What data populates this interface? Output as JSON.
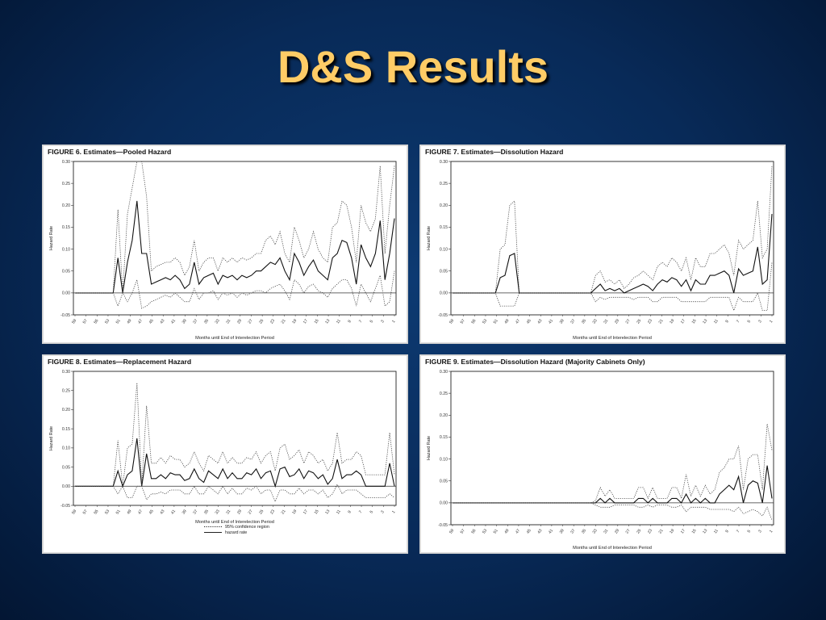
{
  "slide": {
    "title": "D&S Results"
  },
  "chart_data": [
    {
      "type": "line",
      "title": "FIGURE 6.   Estimates—Pooled Hazard",
      "xlabel": "Months until End of Interelection Period",
      "ylabel": "Hazard Rate",
      "ylim": [
        -0.05,
        0.3
      ],
      "yticks": [
        "0.30",
        "0.25",
        "0.20",
        "0.15",
        "0.10",
        "0.05",
        "0.00",
        "-0.05"
      ],
      "xticks": [
        "59",
        "57",
        "55",
        "53",
        "51",
        "49",
        "47",
        "45",
        "43",
        "41",
        "39",
        "37",
        "35",
        "33",
        "31",
        "29",
        "27",
        "25",
        "23",
        "21",
        "19",
        "17",
        "15",
        "13",
        "11",
        "9",
        "7",
        "5",
        "3",
        "1"
      ],
      "legend": [],
      "series": [
        {
          "name": "hazard rate",
          "style": "solid",
          "values": [
            0,
            0,
            0,
            0,
            0,
            0,
            0,
            0,
            0,
            0.08,
            0,
            0.07,
            0.12,
            0.21,
            0.09,
            0.09,
            0.02,
            0.025,
            0.03,
            0.035,
            0.03,
            0.04,
            0.03,
            0.01,
            0.02,
            0.07,
            0.02,
            0.035,
            0.04,
            0.045,
            0.02,
            0.04,
            0.035,
            0.04,
            0.03,
            0.04,
            0.035,
            0.04,
            0.05,
            0.05,
            0.06,
            0.07,
            0.065,
            0.08,
            0.05,
            0.03,
            0.09,
            0.07,
            0.04,
            0.06,
            0.075,
            0.05,
            0.04,
            0.03,
            0.08,
            0.09,
            0.12,
            0.115,
            0.08,
            0.02,
            0.11,
            0.08,
            0.06,
            0.09,
            0.165,
            0.03,
            0.09,
            0.17
          ]
        },
        {
          "name": "95% upper",
          "style": "dotted",
          "values": [
            0,
            0,
            0,
            0,
            0,
            0,
            0,
            0,
            0,
            0.19,
            0,
            0.18,
            0.24,
            0.3,
            0.3,
            0.22,
            0.05,
            0.06,
            0.065,
            0.07,
            0.07,
            0.08,
            0.07,
            0.04,
            0.06,
            0.12,
            0.05,
            0.07,
            0.08,
            0.08,
            0.05,
            0.08,
            0.07,
            0.08,
            0.07,
            0.08,
            0.075,
            0.08,
            0.09,
            0.09,
            0.12,
            0.13,
            0.11,
            0.14,
            0.09,
            0.07,
            0.15,
            0.12,
            0.08,
            0.1,
            0.14,
            0.1,
            0.08,
            0.07,
            0.15,
            0.16,
            0.21,
            0.2,
            0.15,
            0.07,
            0.2,
            0.16,
            0.14,
            0.17,
            0.29,
            0.09,
            0.2,
            0.29
          ]
        },
        {
          "name": "95% lower",
          "style": "dotted",
          "values": [
            0,
            0,
            0,
            0,
            0,
            0,
            0,
            0,
            0,
            -0.03,
            0,
            -0.02,
            0,
            0.03,
            -0.035,
            -0.03,
            -0.02,
            -0.015,
            -0.01,
            -0.005,
            -0.01,
            0,
            -0.01,
            -0.02,
            -0.02,
            0.01,
            -0.015,
            0,
            0,
            0.005,
            -0.015,
            0,
            -0.005,
            0,
            -0.01,
            0,
            -0.005,
            0,
            0.005,
            0.005,
            0,
            0.01,
            0.015,
            0.02,
            0.005,
            -0.015,
            0.03,
            0.02,
            0,
            0.015,
            0.02,
            0.005,
            0,
            -0.01,
            0.01,
            0.02,
            0.03,
            0.03,
            0.01,
            -0.03,
            0.02,
            0,
            -0.02,
            0.01,
            0.04,
            -0.03,
            -0.02,
            0.05
          ]
        }
      ]
    },
    {
      "type": "line",
      "title": "FIGURE 7.   Estimates—Dissolution Hazard",
      "xlabel": "Months until End of Interelection Period",
      "ylabel": "Hazard Rate",
      "ylim": [
        -0.05,
        0.3
      ],
      "yticks": [
        "0.30",
        "0.25",
        "0.20",
        "0.15",
        "0.10",
        "0.05",
        "0.00",
        "-0.05"
      ],
      "xticks": [
        "59",
        "57",
        "55",
        "53",
        "51",
        "49",
        "47",
        "45",
        "43",
        "41",
        "39",
        "37",
        "35",
        "33",
        "31",
        "29",
        "27",
        "25",
        "23",
        "21",
        "19",
        "17",
        "15",
        "13",
        "11",
        "9",
        "7",
        "5",
        "3",
        "1"
      ],
      "legend": [],
      "series": [
        {
          "name": "hazard rate",
          "style": "solid",
          "values": [
            0,
            0,
            0,
            0,
            0,
            0,
            0,
            0,
            0,
            0,
            0.035,
            0.04,
            0.085,
            0.09,
            0,
            0,
            0,
            0,
            0,
            0,
            0,
            0,
            0,
            0,
            0,
            0,
            0,
            0,
            0,
            0,
            0.01,
            0.02,
            0.005,
            0.01,
            0.005,
            0.01,
            0,
            0.005,
            0.01,
            0.015,
            0.02,
            0.015,
            0.005,
            0.02,
            0.03,
            0.025,
            0.035,
            0.03,
            0.015,
            0.03,
            0.005,
            0.03,
            0.02,
            0.02,
            0.04,
            0.04,
            0.045,
            0.05,
            0.04,
            0,
            0.055,
            0.04,
            0.045,
            0.05,
            0.105,
            0.02,
            0.03,
            0.18
          ]
        },
        {
          "name": "95% upper",
          "style": "dotted",
          "values": [
            0,
            0,
            0,
            0,
            0,
            0,
            0,
            0,
            0,
            0,
            0.1,
            0.11,
            0.2,
            0.21,
            0,
            0,
            0,
            0,
            0,
            0,
            0,
            0,
            0,
            0,
            0,
            0,
            0,
            0,
            0,
            0,
            0.04,
            0.05,
            0.025,
            0.03,
            0.02,
            0.03,
            0.01,
            0.02,
            0.035,
            0.04,
            0.05,
            0.04,
            0.03,
            0.06,
            0.07,
            0.06,
            0.08,
            0.07,
            0.05,
            0.08,
            0.03,
            0.08,
            0.06,
            0.06,
            0.09,
            0.09,
            0.1,
            0.11,
            0.09,
            0.04,
            0.12,
            0.1,
            0.11,
            0.12,
            0.21,
            0.08,
            0.1,
            0.29
          ]
        },
        {
          "name": "95% lower",
          "style": "dotted",
          "values": [
            0,
            0,
            0,
            0,
            0,
            0,
            0,
            0,
            0,
            0,
            -0.03,
            -0.03,
            -0.03,
            -0.03,
            0,
            0,
            0,
            0,
            0,
            0,
            0,
            0,
            0,
            0,
            0,
            0,
            0,
            0,
            0,
            0,
            -0.02,
            -0.01,
            -0.015,
            -0.01,
            -0.01,
            -0.01,
            -0.01,
            -0.01,
            -0.015,
            -0.01,
            -0.01,
            -0.01,
            -0.02,
            -0.02,
            -0.01,
            -0.01,
            -0.01,
            -0.01,
            -0.02,
            -0.02,
            -0.02,
            -0.02,
            -0.02,
            -0.02,
            -0.01,
            -0.01,
            -0.01,
            -0.01,
            -0.01,
            -0.04,
            -0.01,
            -0.02,
            -0.02,
            -0.02,
            0,
            -0.04,
            -0.04,
            0.07
          ]
        }
      ]
    },
    {
      "type": "line",
      "title": "FIGURE 8.   Estimates—Replacement Hazard",
      "xlabel": "Months until End of Interelection Period",
      "ylabel": "Hazard Rate",
      "ylim": [
        -0.05,
        0.3
      ],
      "yticks": [
        "0.30",
        "0.25",
        "0.20",
        "0.15",
        "0.10",
        "0.05",
        "0.00",
        "-0.05"
      ],
      "xticks": [
        "59",
        "57",
        "55",
        "53",
        "51",
        "49",
        "47",
        "45",
        "43",
        "41",
        "39",
        "37",
        "35",
        "33",
        "31",
        "29",
        "27",
        "25",
        "23",
        "21",
        "19",
        "17",
        "15",
        "13",
        "11",
        "9",
        "7",
        "5",
        "3",
        "1"
      ],
      "legend": [
        "95% confidence region",
        "hazard rate"
      ],
      "series": [
        {
          "name": "hazard rate",
          "style": "solid",
          "values": [
            0,
            0,
            0,
            0,
            0,
            0,
            0,
            0,
            0,
            0.04,
            0,
            0.03,
            0.04,
            0.125,
            0,
            0.085,
            0.02,
            0.02,
            0.03,
            0.02,
            0.035,
            0.03,
            0.03,
            0.015,
            0.02,
            0.045,
            0.02,
            0.01,
            0.04,
            0.03,
            0.02,
            0.045,
            0.02,
            0.035,
            0.02,
            0.02,
            0.035,
            0.03,
            0.045,
            0.02,
            0.035,
            0.04,
            0,
            0.045,
            0.05,
            0.025,
            0.03,
            0.045,
            0.02,
            0.04,
            0.035,
            0.02,
            0.03,
            0.005,
            0.02,
            0.07,
            0.02,
            0.03,
            0.03,
            0.04,
            0.03,
            0,
            0,
            0,
            0,
            0,
            0.06,
            0
          ]
        },
        {
          "name": "95% upper",
          "style": "dotted",
          "values": [
            0,
            0,
            0,
            0,
            0,
            0,
            0,
            0,
            0,
            0.12,
            0,
            0.1,
            0.11,
            0.27,
            0,
            0.21,
            0.06,
            0.06,
            0.075,
            0.06,
            0.08,
            0.07,
            0.07,
            0.05,
            0.06,
            0.09,
            0.06,
            0.04,
            0.08,
            0.07,
            0.06,
            0.09,
            0.06,
            0.075,
            0.06,
            0.06,
            0.075,
            0.07,
            0.09,
            0.06,
            0.08,
            0.09,
            0.04,
            0.1,
            0.11,
            0.07,
            0.08,
            0.095,
            0.06,
            0.09,
            0.08,
            0.06,
            0.07,
            0.04,
            0.06,
            0.14,
            0.06,
            0.07,
            0.07,
            0.09,
            0.08,
            0.03,
            0.03,
            0.03,
            0.03,
            0.03,
            0.14,
            0.03
          ]
        },
        {
          "name": "95% lower",
          "style": "dotted",
          "values": [
            0,
            0,
            0,
            0,
            0,
            0,
            0,
            0,
            0,
            -0.02,
            0,
            -0.03,
            -0.03,
            0,
            0,
            -0.035,
            -0.02,
            -0.02,
            -0.015,
            -0.02,
            -0.01,
            -0.01,
            -0.01,
            -0.02,
            -0.02,
            0,
            -0.02,
            -0.02,
            0,
            -0.01,
            -0.02,
            0,
            -0.02,
            -0.005,
            -0.02,
            -0.02,
            -0.005,
            -0.01,
            0,
            -0.02,
            -0.01,
            -0.01,
            -0.04,
            -0.01,
            -0.01,
            -0.02,
            -0.02,
            -0.005,
            -0.02,
            -0.01,
            -0.01,
            -0.02,
            -0.01,
            -0.03,
            -0.02,
            0.005,
            -0.02,
            -0.01,
            -0.01,
            -0.01,
            -0.02,
            -0.03,
            -0.03,
            -0.03,
            -0.03,
            -0.03,
            -0.02,
            -0.03
          ]
        }
      ]
    },
    {
      "type": "line",
      "title": "FIGURE 9.   Estimates—Dissolution Hazard (Majority Cabinets Only)",
      "xlabel": "Months until End of Interelection Period",
      "ylabel": "Hazard Rate",
      "ylim": [
        -0.05,
        0.3
      ],
      "yticks": [
        "0.30",
        "0.25",
        "0.20",
        "0.15",
        "0.10",
        "0.05",
        "0.00",
        "-0.05"
      ],
      "xticks": [
        "59",
        "57",
        "55",
        "53",
        "51",
        "49",
        "47",
        "45",
        "43",
        "41",
        "39",
        "37",
        "35",
        "33",
        "31",
        "29",
        "27",
        "25",
        "23",
        "21",
        "19",
        "17",
        "15",
        "13",
        "11",
        "9",
        "7",
        "5",
        "3",
        "1"
      ],
      "legend": [],
      "series": [
        {
          "name": "hazard rate",
          "style": "solid",
          "values": [
            0,
            0,
            0,
            0,
            0,
            0,
            0,
            0,
            0,
            0,
            0,
            0,
            0,
            0,
            0,
            0,
            0,
            0,
            0,
            0,
            0,
            0,
            0,
            0,
            0,
            0,
            0,
            0,
            0,
            0,
            0,
            0.01,
            0,
            0.01,
            0,
            0,
            0,
            0,
            0,
            0.01,
            0.01,
            0,
            0.01,
            0,
            0,
            0,
            0.01,
            0.01,
            0,
            0.02,
            0,
            0.01,
            0,
            0.01,
            0,
            0,
            0.02,
            0.03,
            0.04,
            0.03,
            0.06,
            0,
            0.04,
            0.05,
            0.045,
            0,
            0.085,
            0.01
          ]
        },
        {
          "name": "95% upper",
          "style": "dotted",
          "values": [
            0,
            0,
            0,
            0,
            0,
            0,
            0,
            0,
            0,
            0,
            0,
            0,
            0,
            0,
            0,
            0,
            0,
            0,
            0,
            0,
            0,
            0,
            0,
            0,
            0,
            0,
            0,
            0,
            0,
            0,
            0.005,
            0.035,
            0.015,
            0.03,
            0.01,
            0.01,
            0.01,
            0.01,
            0.01,
            0.035,
            0.035,
            0.01,
            0.035,
            0.01,
            0.01,
            0.01,
            0.035,
            0.035,
            0.01,
            0.065,
            0.015,
            0.04,
            0.015,
            0.04,
            0.02,
            0.03,
            0.07,
            0.08,
            0.1,
            0.1,
            0.13,
            0.03,
            0.1,
            0.11,
            0.11,
            0.03,
            0.18,
            0.12
          ]
        },
        {
          "name": "95% lower",
          "style": "dotted",
          "values": [
            0,
            0,
            0,
            0,
            0,
            0,
            0,
            0,
            0,
            0,
            0,
            0,
            0,
            0,
            0,
            0,
            0,
            0,
            0,
            0,
            0,
            0,
            0,
            0,
            0,
            0,
            0,
            0,
            0,
            0,
            -0.005,
            -0.01,
            -0.01,
            -0.01,
            -0.005,
            -0.005,
            -0.005,
            -0.005,
            -0.005,
            -0.01,
            -0.01,
            -0.005,
            -0.01,
            -0.005,
            -0.005,
            -0.005,
            -0.01,
            -0.01,
            -0.005,
            -0.02,
            -0.01,
            -0.01,
            -0.01,
            -0.01,
            -0.015,
            -0.015,
            -0.015,
            -0.015,
            -0.015,
            -0.02,
            -0.01,
            -0.025,
            -0.02,
            -0.015,
            -0.02,
            -0.03,
            -0.01,
            -0.04
          ]
        }
      ]
    }
  ]
}
